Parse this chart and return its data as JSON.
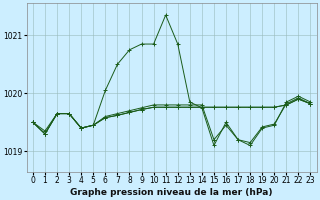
{
  "bg_color": "#cceeff",
  "line_color": "#1a5c1a",
  "grid_color": "#99bbbb",
  "title": "Graphe pression niveau de la mer (hPa)",
  "title_fontsize": 6.5,
  "tick_fontsize": 5.5,
  "ylim": [
    1018.65,
    1021.55
  ],
  "xlim": [
    -0.5,
    23.5
  ],
  "yticks": [
    1019,
    1020,
    1021
  ],
  "xticks": [
    0,
    1,
    2,
    3,
    4,
    5,
    6,
    7,
    8,
    9,
    10,
    11,
    12,
    13,
    14,
    15,
    16,
    17,
    18,
    19,
    20,
    21,
    22,
    23
  ],
  "series": [
    [
      1019.5,
      1019.35,
      1019.65,
      1019.65,
      1019.4,
      1019.45,
      1020.05,
      1020.5,
      1020.75,
      1020.85,
      1020.85,
      1021.35,
      1020.85,
      1019.85,
      1019.75,
      1019.1,
      1019.5,
      1019.2,
      1019.1,
      1019.4,
      1019.45,
      1019.85,
      1019.95,
      1019.85
    ],
    [
      1019.5,
      1019.3,
      1019.65,
      1019.65,
      1019.4,
      1019.45,
      1019.6,
      1019.65,
      1019.7,
      1019.75,
      1019.8,
      1019.8,
      1019.8,
      1019.8,
      1019.8,
      1019.2,
      1019.45,
      1019.2,
      1019.15,
      1019.42,
      1019.47,
      1019.82,
      1019.92,
      1019.82
    ],
    [
      1019.5,
      1019.3,
      1019.65,
      1019.65,
      1019.4,
      1019.45,
      1019.58,
      1019.62,
      1019.67,
      1019.72,
      1019.76,
      1019.76,
      1019.76,
      1019.76,
      1019.76,
      1019.76,
      1019.76,
      1019.76,
      1019.76,
      1019.76,
      1019.76,
      1019.8,
      1019.9,
      1019.82
    ],
    [
      1019.5,
      1019.3,
      1019.65,
      1019.65,
      1019.4,
      1019.45,
      1019.58,
      1019.62,
      1019.67,
      1019.72,
      1019.76,
      1019.76,
      1019.76,
      1019.76,
      1019.76,
      1019.76,
      1019.76,
      1019.76,
      1019.76,
      1019.76,
      1019.76,
      1019.8,
      1019.9,
      1019.82
    ]
  ]
}
